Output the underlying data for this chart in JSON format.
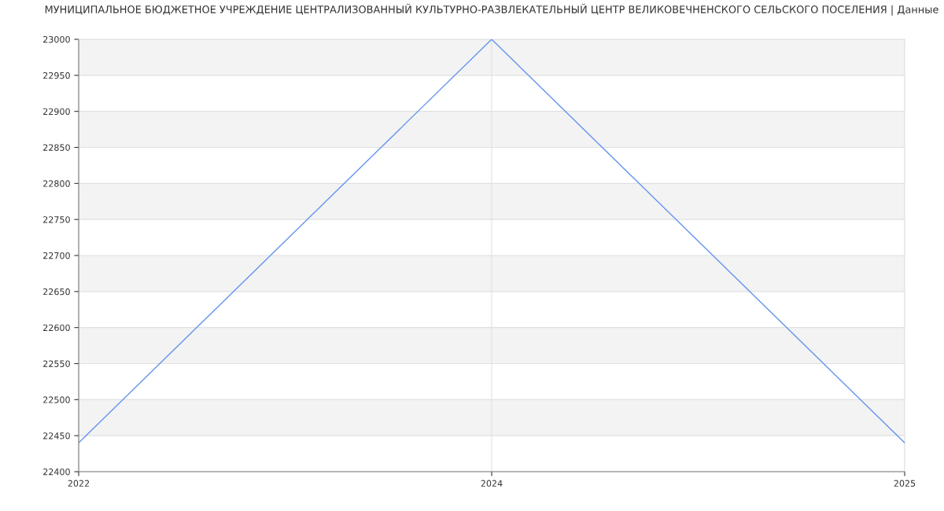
{
  "chart_data": {
    "type": "line",
    "title": "МУНИЦИПАЛЬНОЕ БЮДЖЕТНОЕ УЧРЕЖДЕНИЕ ЦЕНТРАЛИЗОВАННЫЙ КУЛЬТУРНО-РАЗВЛЕКАТЕЛЬНЫЙ ЦЕНТР ВЕЛИКОВЕЧНЕНСКОГО СЕЛЬСКОГО ПОСЕЛЕНИЯ | Данные",
    "categories": [
      "2022",
      "2024",
      "2025"
    ],
    "series": [
      {
        "color": "#6495ed",
        "values": [
          22440,
          23000,
          22440
        ]
      }
    ],
    "ylim": [
      22400,
      23000
    ],
    "yticks": [
      22400,
      22450,
      22500,
      22550,
      22600,
      22650,
      22700,
      22750,
      22800,
      22850,
      22900,
      22950,
      23000
    ],
    "grid": true,
    "marker": "none",
    "line_style": "solid",
    "bands": [
      {
        "axis": "y",
        "from": 22450,
        "to": 22500,
        "color": "#f3f3f3"
      },
      {
        "axis": "y",
        "from": 22550,
        "to": 22600,
        "color": "#f3f3f3"
      },
      {
        "axis": "y",
        "from": 22650,
        "to": 22700,
        "color": "#f3f3f3"
      },
      {
        "axis": "y",
        "from": 22750,
        "to": 22800,
        "color": "#f3f3f3"
      },
      {
        "axis": "y",
        "from": 22850,
        "to": 22900,
        "color": "#f3f3f3"
      },
      {
        "axis": "y",
        "from": 22950,
        "to": 23000,
        "color": "#f3f3f3"
      }
    ]
  }
}
